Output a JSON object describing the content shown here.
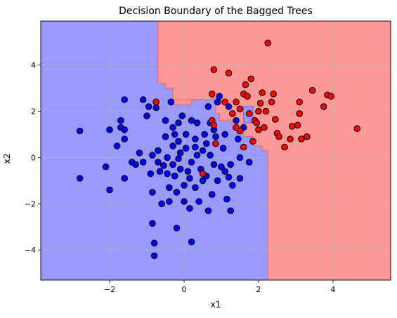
{
  "chart_data": {
    "type": "scatter",
    "title": "Decision Boundary of the Bagged Trees",
    "xlabel": "x1",
    "ylabel": "x2",
    "xlim": [
      -3.85,
      5.55
    ],
    "ylim": [
      -5.3,
      5.9
    ],
    "xticks": [
      -2,
      0,
      2,
      4
    ],
    "yticks": [
      -4,
      -2,
      0,
      2,
      4
    ],
    "xtick_labels": [
      "−2",
      "0",
      "2",
      "4"
    ],
    "ytick_labels": [
      "−4",
      "−2",
      "0",
      "2",
      "4"
    ],
    "grid": true,
    "regions": [
      {
        "class": "blue",
        "color": "#9999ff",
        "boundary_color": "#6666ff",
        "polygon": [
          [
            -3.85,
            5.9
          ],
          [
            -0.7,
            5.9
          ],
          [
            -0.7,
            3.2
          ],
          [
            -0.5,
            3.2
          ],
          [
            -0.5,
            3.0
          ],
          [
            -0.3,
            3.0
          ],
          [
            -0.3,
            2.5
          ],
          [
            0.75,
            2.5
          ],
          [
            0.75,
            2.6
          ],
          [
            1.0,
            2.6
          ],
          [
            1.0,
            2.3
          ],
          [
            0.85,
            2.3
          ],
          [
            0.85,
            1.9
          ],
          [
            0.95,
            1.9
          ],
          [
            0.95,
            1.6
          ],
          [
            1.3,
            1.6
          ],
          [
            1.3,
            1.2
          ],
          [
            1.6,
            1.2
          ],
          [
            1.6,
            0.9
          ],
          [
            1.85,
            0.9
          ],
          [
            1.85,
            0.5
          ],
          [
            2.1,
            0.5
          ],
          [
            2.1,
            0.3
          ],
          [
            2.25,
            0.3
          ],
          [
            2.25,
            -5.3
          ],
          [
            -3.85,
            -5.3
          ]
        ]
      },
      {
        "class": "red",
        "color": "#ff9999",
        "boundary_color": "#ff6666",
        "polygon": [
          [
            -0.7,
            5.9
          ],
          [
            5.55,
            5.9
          ],
          [
            5.55,
            -5.3
          ],
          [
            2.25,
            -5.3
          ],
          [
            2.25,
            0.3
          ],
          [
            2.1,
            0.3
          ],
          [
            2.1,
            0.5
          ],
          [
            1.85,
            0.5
          ],
          [
            1.85,
            0.9
          ],
          [
            1.6,
            0.9
          ],
          [
            1.6,
            1.2
          ],
          [
            1.3,
            1.2
          ],
          [
            1.3,
            1.6
          ],
          [
            0.95,
            1.6
          ],
          [
            0.95,
            1.9
          ],
          [
            0.85,
            1.9
          ],
          [
            0.85,
            2.3
          ],
          [
            1.0,
            2.3
          ],
          [
            1.0,
            2.6
          ],
          [
            0.75,
            2.6
          ],
          [
            0.75,
            2.5
          ],
          [
            -0.3,
            2.5
          ],
          [
            -0.3,
            3.0
          ],
          [
            -0.5,
            3.0
          ],
          [
            -0.5,
            3.2
          ],
          [
            -0.7,
            3.2
          ]
        ]
      },
      {
        "class": "red",
        "color": "#ff9999",
        "boundary_color": "#ff6666",
        "polygon": [
          [
            -0.3,
            2.5
          ],
          [
            0.2,
            2.5
          ],
          [
            0.2,
            2.3
          ],
          [
            -0.3,
            2.3
          ]
        ]
      },
      {
        "class": "blue",
        "color": "#9999ff",
        "boundary_color": "#6666ff",
        "polygon": [
          [
            1.6,
            2.2
          ],
          [
            1.85,
            2.2
          ],
          [
            1.85,
            1.5
          ],
          [
            1.6,
            1.5
          ]
        ]
      }
    ],
    "series": [
      {
        "color": "#0000ff",
        "points": [
          [
            -2.8,
            1.15
          ],
          [
            -2.8,
            -0.9
          ],
          [
            -2.1,
            -0.4
          ],
          [
            -2.0,
            1.2
          ],
          [
            -2.0,
            -1.4
          ],
          [
            -1.8,
            0.5
          ],
          [
            -1.7,
            1.6
          ],
          [
            -1.7,
            1.3
          ],
          [
            -1.6,
            2.5
          ],
          [
            -1.6,
            1.2
          ],
          [
            -1.6,
            0.8
          ],
          [
            -1.6,
            -0.9
          ],
          [
            -1.4,
            -0.2
          ],
          [
            -1.3,
            -0.3
          ],
          [
            -1.2,
            0.2
          ],
          [
            -1.1,
            2.5
          ],
          [
            -1.1,
            -0.2
          ],
          [
            -1.0,
            1.8
          ],
          [
            -0.95,
            2.2
          ],
          [
            -0.9,
            -0.7
          ],
          [
            -0.85,
            0.1
          ],
          [
            -0.85,
            -1.5
          ],
          [
            -0.85,
            -2.85
          ],
          [
            -0.8,
            -3.7
          ],
          [
            -0.8,
            -4.25
          ],
          [
            -0.75,
            2.15
          ],
          [
            -0.7,
            0.3
          ],
          [
            -0.7,
            -0.2
          ],
          [
            -0.65,
            -0.6
          ],
          [
            -0.6,
            -2.0
          ],
          [
            -0.5,
            1.6
          ],
          [
            -0.5,
            0.9
          ],
          [
            -0.45,
            0.0
          ],
          [
            -0.45,
            -0.7
          ],
          [
            -0.4,
            -1.3
          ],
          [
            -0.4,
            -1.9
          ],
          [
            -0.35,
            2.4
          ],
          [
            -0.3,
            1.3
          ],
          [
            -0.3,
            0.5
          ],
          [
            -0.3,
            -0.3
          ],
          [
            -0.25,
            -0.8
          ],
          [
            -0.2,
            -1.5
          ],
          [
            -0.2,
            -3.05
          ],
          [
            -0.15,
            1.5
          ],
          [
            -0.15,
            0.7
          ],
          [
            -0.1,
            0.2
          ],
          [
            -0.1,
            -0.5
          ],
          [
            -0.05,
            1.8
          ],
          [
            0.0,
            -1.2
          ],
          [
            0.0,
            -1.9
          ],
          [
            0.05,
            1.0
          ],
          [
            0.05,
            0.4
          ],
          [
            0.1,
            -0.6
          ],
          [
            0.15,
            -0.9
          ],
          [
            0.2,
            1.6
          ],
          [
            0.2,
            -0.2
          ],
          [
            0.2,
            -3.65
          ],
          [
            0.3,
            0.8
          ],
          [
            0.3,
            -1.3
          ],
          [
            0.35,
            1.5
          ],
          [
            0.35,
            0.1
          ],
          [
            0.4,
            -1.9
          ],
          [
            0.45,
            -0.5
          ],
          [
            0.5,
            0.3
          ],
          [
            0.5,
            -1.0
          ],
          [
            0.55,
            1.0
          ],
          [
            0.6,
            0.6
          ],
          [
            0.6,
            -0.8
          ],
          [
            0.65,
            2.2
          ],
          [
            0.7,
            1.5
          ],
          [
            0.7,
            0.1
          ],
          [
            0.75,
            -1.6
          ],
          [
            0.8,
            1.2
          ],
          [
            0.8,
            -0.3
          ],
          [
            0.85,
            0.9
          ],
          [
            0.9,
            2.4
          ],
          [
            0.9,
            -1.0
          ],
          [
            0.95,
            2.65
          ],
          [
            1.0,
            -0.4
          ],
          [
            1.05,
            0.4
          ],
          [
            1.1,
            1.0
          ],
          [
            1.1,
            -0.6
          ],
          [
            1.15,
            -1.8
          ],
          [
            1.2,
            2.2
          ],
          [
            1.25,
            -0.3
          ],
          [
            1.25,
            -2.3
          ],
          [
            1.3,
            -1.2
          ],
          [
            1.4,
            1.6
          ],
          [
            1.45,
            0.8
          ],
          [
            1.5,
            0.0
          ],
          [
            1.5,
            -0.9
          ],
          [
            1.6,
            1.3
          ],
          [
            1.75,
            -0.2
          ],
          [
            -0.25,
            1.0
          ],
          [
            0.15,
            -2.2
          ],
          [
            -0.55,
            -0.35
          ],
          [
            0.65,
            -2.3
          ],
          [
            1.2,
            -0.85
          ],
          [
            0.3,
            0.45
          ],
          [
            -0.15,
            -0.05
          ]
        ]
      },
      {
        "color": "#ff0000",
        "points": [
          [
            -0.75,
            2.4
          ],
          [
            0.5,
            -0.7
          ],
          [
            0.75,
            2.75
          ],
          [
            0.75,
            1.6
          ],
          [
            0.8,
            3.8
          ],
          [
            0.8,
            1.4
          ],
          [
            0.85,
            0.6
          ],
          [
            1.2,
            3.65
          ],
          [
            1.3,
            1.9
          ],
          [
            1.4,
            2.4
          ],
          [
            1.4,
            1.3
          ],
          [
            1.5,
            1.15
          ],
          [
            1.5,
            2.1
          ],
          [
            1.6,
            2.75
          ],
          [
            1.65,
            3.15
          ],
          [
            1.7,
            2.65
          ],
          [
            1.75,
            1.9
          ],
          [
            1.8,
            3.4
          ],
          [
            1.85,
            0.7
          ],
          [
            1.9,
            1.6
          ],
          [
            1.95,
            1.5
          ],
          [
            2.0,
            2.0
          ],
          [
            2.05,
            2.35
          ],
          [
            2.1,
            2.8
          ],
          [
            2.15,
            1.3
          ],
          [
            2.2,
            2.0
          ],
          [
            2.25,
            4.95
          ],
          [
            2.35,
            2.4
          ],
          [
            2.4,
            2.75
          ],
          [
            2.45,
            1.65
          ],
          [
            2.5,
            1.05
          ],
          [
            2.55,
            0.9
          ],
          [
            2.7,
            0.45
          ],
          [
            2.85,
            0.8
          ],
          [
            2.9,
            1.35
          ],
          [
            3.05,
            1.4
          ],
          [
            3.1,
            2.4
          ],
          [
            3.1,
            1.9
          ],
          [
            3.15,
            0.8
          ],
          [
            3.3,
            0.9
          ],
          [
            3.45,
            2.9
          ],
          [
            3.75,
            2.2
          ],
          [
            3.85,
            2.7
          ],
          [
            3.95,
            2.65
          ],
          [
            4.65,
            1.25
          ],
          [
            1.1,
            2.4
          ],
          [
            2.0,
            1.2
          ],
          [
            1.6,
            0.45
          ]
        ]
      }
    ]
  }
}
